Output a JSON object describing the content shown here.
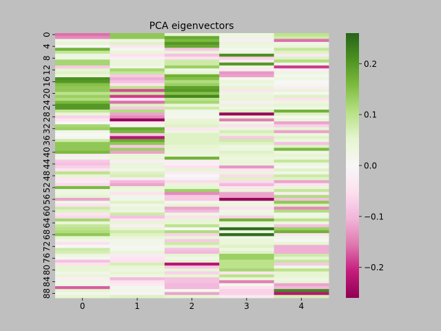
{
  "chart_data": {
    "type": "heatmap",
    "title": "PCA eigenvectors",
    "xlabel": "",
    "ylabel": "",
    "x_categories": [
      "0",
      "1",
      "2",
      "3",
      "4"
    ],
    "y_tick_labels": [
      "0",
      "4",
      "8",
      "12",
      "16",
      "20",
      "24",
      "28",
      "32",
      "36",
      "40",
      "44",
      "48",
      "52",
      "56",
      "60",
      "64",
      "68",
      "72",
      "76",
      "80",
      "84",
      "88"
    ],
    "n_rows": 90,
    "colormap": "PiYG",
    "vmin": -0.26,
    "vmax": 0.26,
    "colorbar_ticks": [
      {
        "value": 0.2,
        "label": "0.2"
      },
      {
        "value": 0.1,
        "label": "0.1"
      },
      {
        "value": 0.0,
        "label": "0.0"
      },
      {
        "value": -0.1,
        "label": "−0.1"
      },
      {
        "value": -0.2,
        "label": "−0.2"
      }
    ],
    "grid": false,
    "legend": "colorbar-right",
    "values": [
      [
        -0.16,
        0.14,
        0.05,
        0.03,
        0.1
      ],
      [
        -0.14,
        0.14,
        0.18,
        0.03,
        0.08
      ],
      [
        0.02,
        0.03,
        0.16,
        -0.02,
        -0.16
      ],
      [
        0.05,
        0.06,
        0.2,
        0.04,
        0.02
      ],
      [
        0.0,
        -0.04,
        0.18,
        0.03,
        0.04
      ],
      [
        0.17,
        0.01,
        -0.08,
        0.01,
        0.09
      ],
      [
        0.09,
        0.04,
        0.04,
        0.03,
        0.06
      ],
      [
        0.03,
        -0.05,
        -0.09,
        0.21,
        -0.03
      ],
      [
        0.03,
        -0.02,
        -0.05,
        -0.07,
        0.06
      ],
      [
        0.12,
        0.04,
        0.08,
        -0.03,
        0.11
      ],
      [
        0.12,
        0.04,
        0.08,
        0.2,
        0.02
      ],
      [
        -0.08,
        0.02,
        0.13,
        0.03,
        -0.19
      ],
      [
        0.05,
        0.12,
        0.02,
        -0.03,
        -0.02
      ],
      [
        0.06,
        0.09,
        0.05,
        -0.13,
        0.03
      ],
      [
        0.03,
        -0.08,
        0.17,
        -0.12,
        0.01
      ],
      [
        0.21,
        -0.11,
        0.15,
        0.01,
        0.03
      ],
      [
        0.2,
        -0.09,
        0.11,
        0.04,
        0.0
      ],
      [
        0.15,
        -0.05,
        0.13,
        0.02,
        0.01
      ],
      [
        0.14,
        0.1,
        0.19,
        0.05,
        -0.02
      ],
      [
        0.14,
        -0.18,
        0.2,
        -0.04,
        0.04
      ],
      [
        0.1,
        0.08,
        0.15,
        0.03,
        0.01
      ],
      [
        0.13,
        -0.19,
        0.22,
        0.04,
        0.06
      ],
      [
        0.11,
        -0.05,
        0.1,
        0.04,
        -0.05
      ],
      [
        0.16,
        -0.16,
        0.12,
        -0.02,
        0.03
      ],
      [
        0.2,
        0.06,
        0.04,
        0.04,
        0.05
      ],
      [
        0.2,
        -0.08,
        0.08,
        0.02,
        0.02
      ],
      [
        0.09,
        0.11,
        0.02,
        0.06,
        0.17
      ],
      [
        0.04,
        -0.12,
        0.02,
        -0.25,
        0.06
      ],
      [
        -0.07,
        -0.14,
        0.01,
        0.03,
        0.01
      ],
      [
        -0.04,
        -0.25,
        0.04,
        -0.15,
        0.04
      ],
      [
        0.0,
        -0.03,
        0.05,
        0.03,
        -0.12
      ],
      [
        0.12,
        0.02,
        0.06,
        -0.05,
        -0.07
      ],
      [
        0.13,
        0.18,
        -0.04,
        0.03,
        0.05
      ],
      [
        0.02,
        0.16,
        0.03,
        0.07,
        -0.12
      ],
      [
        0.0,
        -0.08,
        0.06,
        0.05,
        0.03
      ],
      [
        0.01,
        -0.22,
        0.06,
        -0.08,
        0.06
      ],
      [
        0.08,
        0.18,
        0.06,
        0.08,
        0.03
      ],
      [
        0.14,
        0.14,
        0.06,
        0.06,
        -0.09
      ],
      [
        0.14,
        -0.08,
        0.05,
        0.03,
        0.06
      ],
      [
        0.14,
        0.13,
        0.04,
        0.03,
        0.16
      ],
      [
        0.16,
        -0.12,
        0.04,
        0.06,
        0.02
      ],
      [
        -0.03,
        0.04,
        0.03,
        0.05,
        0.05
      ],
      [
        0.02,
        0.04,
        0.17,
        0.03,
        0.03
      ],
      [
        -0.08,
        -0.02,
        -0.02,
        0.04,
        0.09
      ],
      [
        -0.09,
        0.04,
        -0.02,
        0.04,
        0.03
      ],
      [
        -0.07,
        0.04,
        -0.05,
        -0.13,
        0.01
      ],
      [
        -0.04,
        0.02,
        0.05,
        -0.04,
        0.06
      ],
      [
        0.1,
        0.06,
        -0.03,
        0.04,
        0.02
      ],
      [
        0.05,
        0.07,
        0.0,
        -0.06,
        0.08
      ],
      [
        -0.04,
        -0.03,
        -0.02,
        0.06,
        0.06
      ],
      [
        -0.03,
        -0.1,
        -0.06,
        -0.06,
        -0.12
      ],
      [
        -0.06,
        -0.12,
        0.04,
        -0.1,
        -0.04
      ],
      [
        0.16,
        0.04,
        0.05,
        -0.04,
        0.04
      ],
      [
        0.02,
        0.03,
        0.13,
        0.04,
        0.09
      ],
      [
        0.03,
        -0.05,
        -0.14,
        -0.12,
        -0.02
      ],
      [
        0.05,
        0.02,
        -0.08,
        -0.12,
        0.11
      ],
      [
        -0.12,
        0.02,
        -0.08,
        -0.25,
        -0.09
      ],
      [
        0.02,
        0.06,
        0.01,
        0.03,
        0.14
      ],
      [
        -0.05,
        0.02,
        0.05,
        0.03,
        0.06
      ],
      [
        0.08,
        0.04,
        -0.12,
        -0.05,
        -0.14
      ],
      [
        0.06,
        0.03,
        -0.1,
        0.02,
        0.11
      ],
      [
        -0.04,
        0.08,
        0.03,
        0.03,
        0.02
      ],
      [
        -0.06,
        -0.09,
        -0.05,
        -0.07,
        0.03
      ],
      [
        0.12,
        -0.04,
        0.05,
        0.17,
        0.1
      ],
      [
        0.04,
        0.05,
        0.04,
        0.04,
        0.03
      ],
      [
        0.09,
        -0.02,
        0.1,
        0.02,
        -0.09
      ],
      [
        0.1,
        0.05,
        0.0,
        0.25,
        0.13
      ],
      [
        0.11,
        0.08,
        0.11,
        0.03,
        0.17
      ],
      [
        0.14,
        0.06,
        -0.07,
        0.25,
        -0.04
      ],
      [
        0.05,
        0.04,
        0.04,
        0.02,
        0.02
      ],
      [
        0.02,
        0.02,
        -0.08,
        0.04,
        0.01
      ],
      [
        -0.05,
        0.02,
        0.08,
        0.04,
        0.05
      ],
      [
        0.0,
        0.01,
        0.04,
        0.06,
        -0.11
      ],
      [
        0.08,
        0.01,
        -0.09,
        0.03,
        -0.11
      ],
      [
        0.07,
        0.04,
        -0.1,
        0.06,
        -0.11
      ],
      [
        0.03,
        -0.03,
        0.05,
        0.13,
        0.08
      ],
      [
        0.01,
        -0.04,
        0.02,
        0.13,
        0.05
      ],
      [
        -0.09,
        -0.05,
        0.05,
        0.1,
        0.09
      ],
      [
        -0.05,
        0.07,
        -0.22,
        0.1,
        -0.08
      ],
      [
        0.05,
        0.04,
        -0.08,
        0.1,
        0.02
      ],
      [
        0.05,
        0.03,
        0.04,
        0.12,
        0.1
      ],
      [
        0.02,
        0.05,
        -0.07,
        -0.04,
        0.05
      ],
      [
        0.04,
        0.03,
        0.05,
        0.1,
        0.05
      ],
      [
        -0.02,
        -0.1,
        -0.09,
        0.04,
        0.03
      ],
      [
        0.02,
        -0.05,
        -0.09,
        -0.15,
        0.04
      ],
      [
        0.02,
        -0.03,
        -0.1,
        0.01,
        -0.12
      ],
      [
        -0.17,
        0.01,
        -0.1,
        -0.05,
        -0.1
      ],
      [
        0.05,
        0.02,
        0.01,
        -0.07,
        0.22
      ],
      [
        0.02,
        -0.01,
        -0.12,
        -0.07,
        -0.22
      ],
      [
        0.05,
        0.06,
        0.05,
        -0.03,
        0.07
      ]
    ]
  }
}
